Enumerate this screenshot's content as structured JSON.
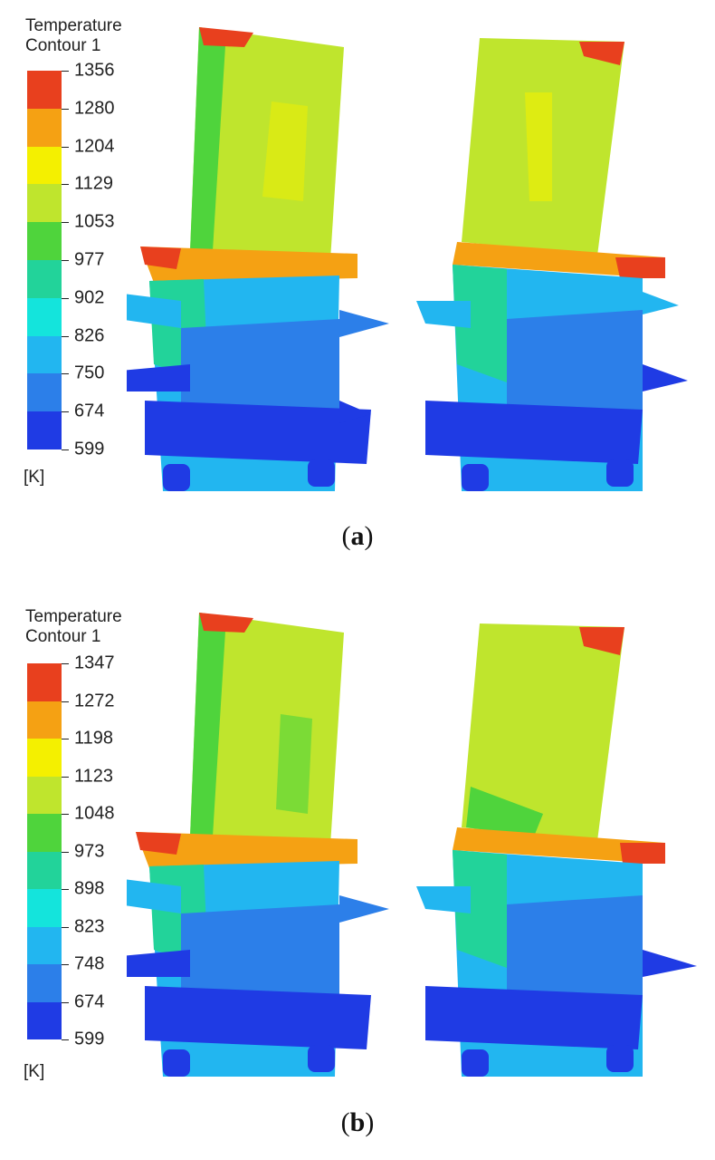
{
  "panels": [
    {
      "id": "a",
      "legend_title_line1": "Temperature",
      "legend_title_line2": "Contour 1",
      "ticks": [
        "1356",
        "1280",
        "1204",
        "1129",
        "1053",
        "977",
        "902",
        "826",
        "750",
        "674",
        "599"
      ],
      "unit": "[K]",
      "caption_open": "(",
      "caption_letter": "a",
      "caption_close": ")"
    },
    {
      "id": "b",
      "legend_title_line1": "Temperature",
      "legend_title_line2": "Contour 1",
      "ticks": [
        "1347",
        "1272",
        "1198",
        "1123",
        "1048",
        "973",
        "898",
        "823",
        "748",
        "674",
        "599"
      ],
      "unit": "[K]",
      "caption_open": "(",
      "caption_letter": "b",
      "caption_close": ")"
    }
  ],
  "colors": {
    "band_1": "#e8401e",
    "band_2": "#f5a113",
    "band_3": "#f4f000",
    "band_4": "#bfe52d",
    "band_5": "#4fd43c",
    "band_6": "#22d39a",
    "band_7": "#14e4dc",
    "band_8": "#22b6f0",
    "band_9": "#2c7fe9",
    "band_10": "#1f3be4"
  }
}
